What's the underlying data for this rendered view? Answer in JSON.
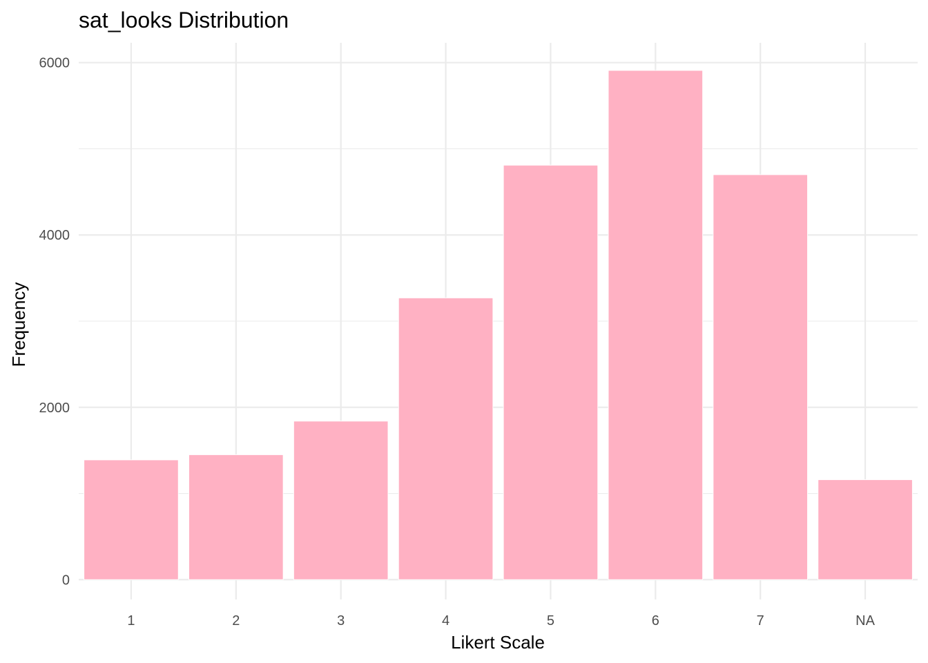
{
  "chart_data": {
    "type": "bar",
    "title": "sat_looks Distribution",
    "xlabel": "Likert Scale",
    "ylabel": "Frequency",
    "categories": [
      "1",
      "2",
      "3",
      "4",
      "5",
      "6",
      "7",
      "NA"
    ],
    "values": [
      1390,
      1450,
      1840,
      3270,
      4810,
      5910,
      4700,
      1160
    ],
    "ylim": [
      -230,
      6230
    ],
    "yticks": [
      0,
      2000,
      4000,
      6000
    ],
    "ytick_labels": [
      "0",
      "2000",
      "4000",
      "6000"
    ],
    "grid": true,
    "bar_color": "#FFB1C3"
  }
}
